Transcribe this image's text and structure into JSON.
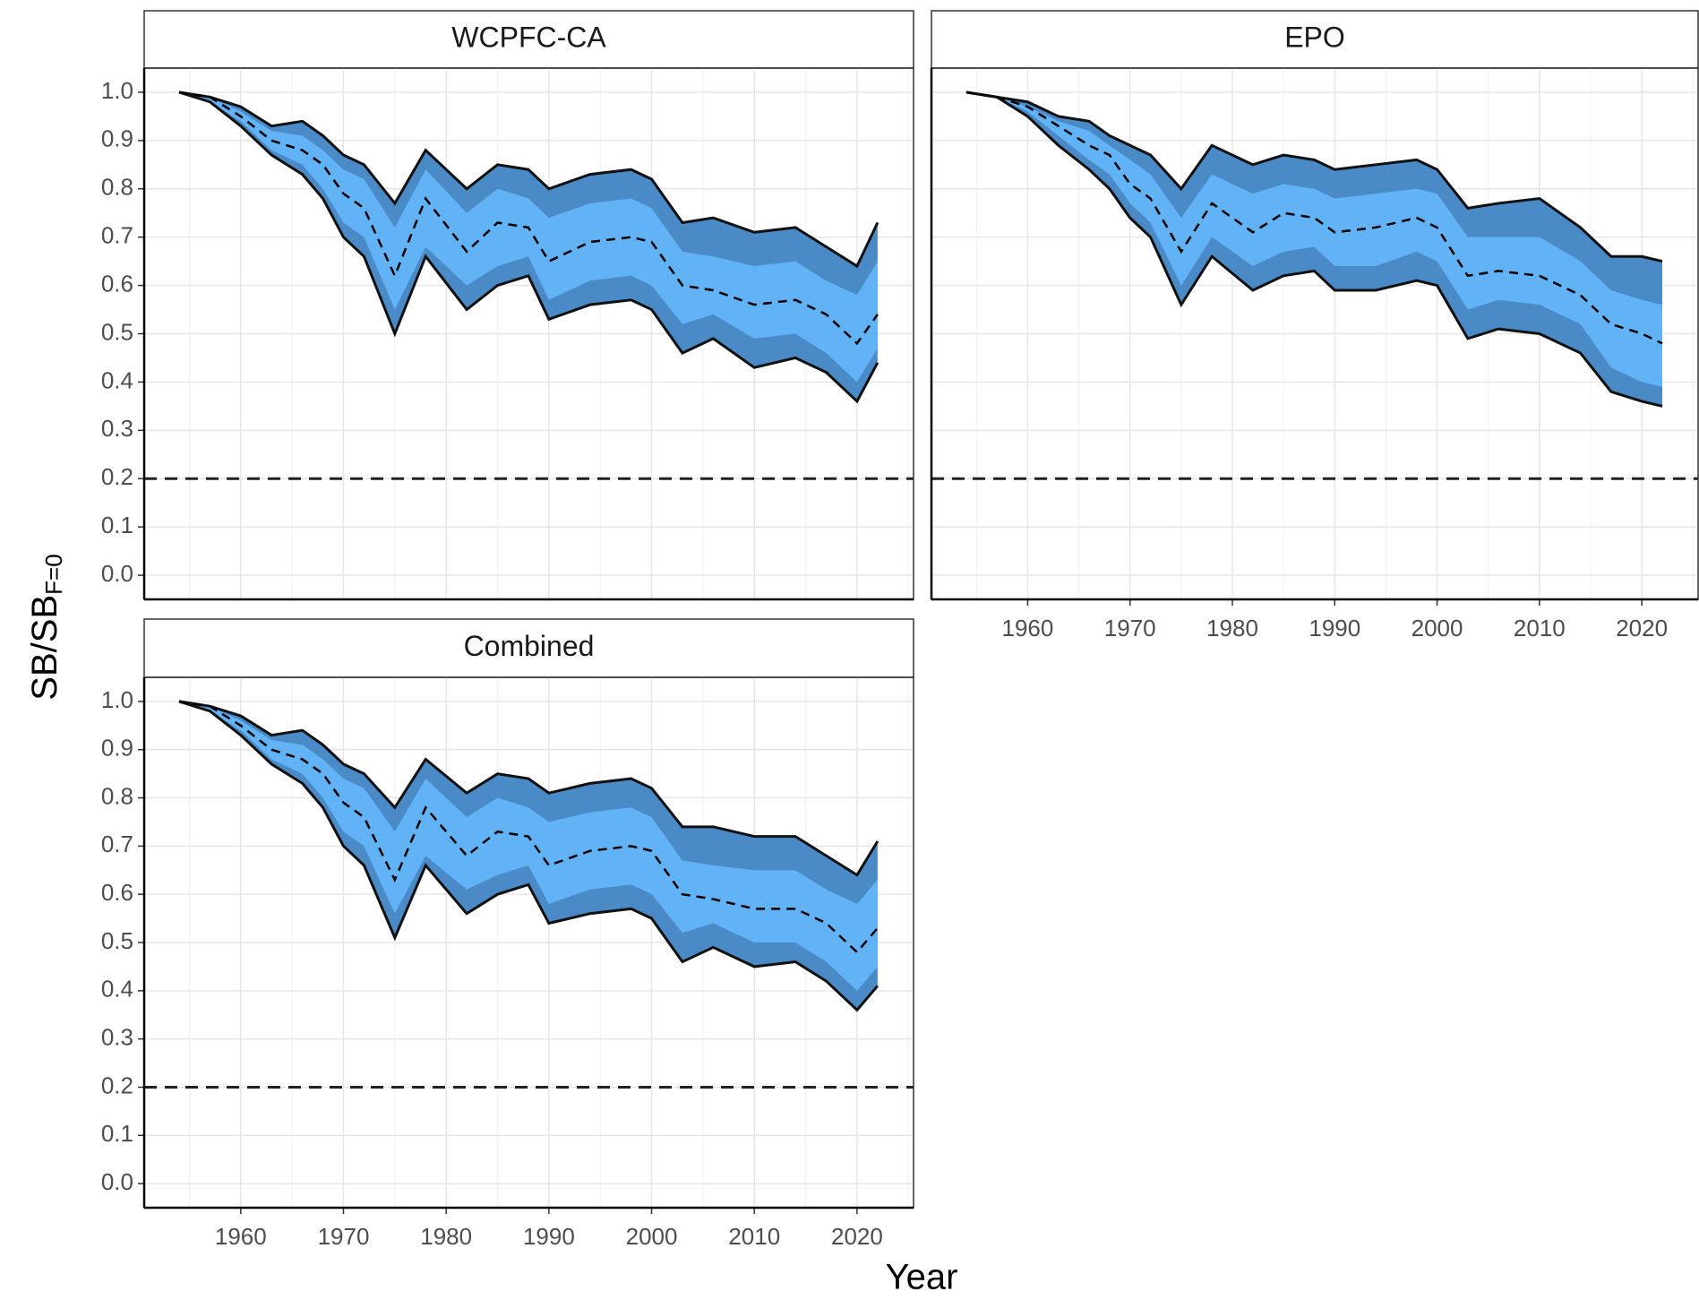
{
  "y_label": "SB/SB",
  "y_label_sub": "F=0",
  "x_label": "Year",
  "chart_data": [
    {
      "type": "band",
      "title": "WCPFC-CA",
      "show_xtick_labels": false,
      "show_ytick_labels": true,
      "x": [
        1954,
        1957,
        1960,
        1963,
        1966,
        1968,
        1970,
        1972,
        1975,
        1978,
        1982,
        1985,
        1988,
        1990,
        1994,
        1998,
        2000,
        2003,
        2006,
        2010,
        2014,
        2017,
        2020,
        2022
      ],
      "bands": [
        {
          "color": "#4a8ac6",
          "lower": [
            1,
            0.98,
            0.93,
            0.87,
            0.83,
            0.78,
            0.7,
            0.66,
            0.5,
            0.66,
            0.55,
            0.6,
            0.62,
            0.53,
            0.56,
            0.57,
            0.55,
            0.46,
            0.49,
            0.43,
            0.45,
            0.42,
            0.36,
            0.44
          ],
          "upper": [
            1,
            0.99,
            0.97,
            0.93,
            0.94,
            0.91,
            0.87,
            0.85,
            0.77,
            0.88,
            0.8,
            0.85,
            0.84,
            0.8,
            0.83,
            0.84,
            0.82,
            0.73,
            0.74,
            0.71,
            0.72,
            0.68,
            0.64,
            0.73
          ]
        },
        {
          "color": "#62b3f6",
          "lower": [
            1,
            0.98,
            0.94,
            0.88,
            0.85,
            0.8,
            0.73,
            0.7,
            0.55,
            0.68,
            0.6,
            0.64,
            0.66,
            0.57,
            0.61,
            0.62,
            0.6,
            0.52,
            0.54,
            0.49,
            0.5,
            0.46,
            0.4,
            0.47
          ],
          "upper": [
            1,
            0.99,
            0.96,
            0.92,
            0.91,
            0.88,
            0.84,
            0.82,
            0.72,
            0.84,
            0.75,
            0.8,
            0.78,
            0.74,
            0.77,
            0.78,
            0.76,
            0.67,
            0.66,
            0.64,
            0.65,
            0.61,
            0.58,
            0.65
          ]
        }
      ],
      "line": {
        "color": "#000000",
        "values": [
          1,
          0.99,
          0.95,
          0.9,
          0.88,
          0.85,
          0.79,
          0.76,
          0.62,
          0.78,
          0.67,
          0.73,
          0.72,
          0.65,
          0.69,
          0.7,
          0.69,
          0.6,
          0.59,
          0.56,
          0.57,
          0.54,
          0.48,
          0.54
        ]
      },
      "hline": 0.2,
      "xlim": [
        1950.6,
        2025.5
      ],
      "ylim": [
        -0.05,
        1.05
      ],
      "xticks": [
        1960,
        1970,
        1980,
        1990,
        2000,
        2010,
        2020
      ],
      "yticks": [
        {
          "value": 0,
          "label": "0.0"
        },
        0.1,
        0.2,
        0.3,
        0.4,
        0.5,
        0.6,
        0.7,
        0.8,
        0.9,
        {
          "value": 1,
          "label": "1.0"
        }
      ],
      "grid": true
    },
    {
      "type": "band",
      "title": "EPO",
      "show_xtick_labels": true,
      "show_ytick_labels": false,
      "x": [
        1954,
        1957,
        1960,
        1963,
        1966,
        1968,
        1970,
        1972,
        1975,
        1978,
        1982,
        1985,
        1988,
        1990,
        1994,
        1998,
        2000,
        2003,
        2006,
        2010,
        2014,
        2017,
        2020,
        2022
      ],
      "bands": [
        {
          "color": "#4a8ac6",
          "lower": [
            1,
            0.99,
            0.95,
            0.89,
            0.84,
            0.8,
            0.74,
            0.7,
            0.56,
            0.66,
            0.59,
            0.62,
            0.63,
            0.59,
            0.59,
            0.61,
            0.6,
            0.49,
            0.51,
            0.5,
            0.46,
            0.38,
            0.36,
            0.35
          ],
          "upper": [
            1,
            0.99,
            0.98,
            0.95,
            0.94,
            0.91,
            0.89,
            0.87,
            0.8,
            0.89,
            0.85,
            0.87,
            0.86,
            0.84,
            0.85,
            0.86,
            0.84,
            0.76,
            0.77,
            0.78,
            0.72,
            0.66,
            0.66,
            0.65
          ]
        },
        {
          "color": "#62b3f6",
          "lower": [
            1,
            0.99,
            0.96,
            0.91,
            0.86,
            0.83,
            0.77,
            0.73,
            0.6,
            0.7,
            0.64,
            0.67,
            0.68,
            0.64,
            0.64,
            0.67,
            0.65,
            0.55,
            0.57,
            0.56,
            0.52,
            0.43,
            0.4,
            0.39
          ],
          "upper": [
            1,
            0.99,
            0.97,
            0.94,
            0.92,
            0.89,
            0.86,
            0.83,
            0.74,
            0.83,
            0.79,
            0.81,
            0.8,
            0.78,
            0.79,
            0.8,
            0.79,
            0.7,
            0.7,
            0.7,
            0.65,
            0.59,
            0.57,
            0.56
          ]
        }
      ],
      "line": {
        "color": "#000000",
        "values": [
          1,
          0.99,
          0.97,
          0.93,
          0.89,
          0.87,
          0.81,
          0.78,
          0.67,
          0.77,
          0.71,
          0.75,
          0.74,
          0.71,
          0.72,
          0.74,
          0.72,
          0.62,
          0.63,
          0.62,
          0.58,
          0.52,
          0.5,
          0.48
        ]
      },
      "hline": 0.2,
      "xlim": [
        1950.6,
        2025.5
      ],
      "ylim": [
        -0.05,
        1.05
      ],
      "xticks": [
        1960,
        1970,
        1980,
        1990,
        2000,
        2010,
        2020
      ],
      "yticks": [
        {
          "value": 0,
          "label": "0.0"
        },
        0.1,
        0.2,
        0.3,
        0.4,
        0.5,
        0.6,
        0.7,
        0.8,
        0.9,
        {
          "value": 1,
          "label": "1.0"
        }
      ],
      "grid": true
    },
    {
      "type": "band",
      "title": "Combined",
      "show_xtick_labels": true,
      "show_ytick_labels": true,
      "x": [
        1954,
        1957,
        1960,
        1963,
        1966,
        1968,
        1970,
        1972,
        1975,
        1978,
        1982,
        1985,
        1988,
        1990,
        1994,
        1998,
        2000,
        2003,
        2006,
        2010,
        2014,
        2017,
        2020,
        2022
      ],
      "bands": [
        {
          "color": "#4a8ac6",
          "lower": [
            1,
            0.98,
            0.93,
            0.87,
            0.83,
            0.78,
            0.7,
            0.66,
            0.51,
            0.66,
            0.56,
            0.6,
            0.62,
            0.54,
            0.56,
            0.57,
            0.55,
            0.46,
            0.49,
            0.45,
            0.46,
            0.42,
            0.36,
            0.41
          ],
          "upper": [
            1,
            0.99,
            0.97,
            0.93,
            0.94,
            0.91,
            0.87,
            0.85,
            0.78,
            0.88,
            0.81,
            0.85,
            0.84,
            0.81,
            0.83,
            0.84,
            0.82,
            0.74,
            0.74,
            0.72,
            0.72,
            0.68,
            0.64,
            0.71
          ]
        },
        {
          "color": "#62b3f6",
          "lower": [
            1,
            0.98,
            0.94,
            0.88,
            0.85,
            0.8,
            0.73,
            0.7,
            0.56,
            0.68,
            0.61,
            0.64,
            0.66,
            0.58,
            0.61,
            0.62,
            0.6,
            0.52,
            0.54,
            0.5,
            0.5,
            0.46,
            0.4,
            0.45
          ],
          "upper": [
            1,
            0.99,
            0.96,
            0.92,
            0.91,
            0.88,
            0.84,
            0.82,
            0.73,
            0.84,
            0.76,
            0.8,
            0.78,
            0.75,
            0.77,
            0.78,
            0.76,
            0.67,
            0.66,
            0.65,
            0.65,
            0.61,
            0.58,
            0.63
          ]
        }
      ],
      "line": {
        "color": "#000000",
        "values": [
          1,
          0.99,
          0.95,
          0.9,
          0.88,
          0.85,
          0.79,
          0.76,
          0.63,
          0.78,
          0.68,
          0.73,
          0.72,
          0.66,
          0.69,
          0.7,
          0.69,
          0.6,
          0.59,
          0.57,
          0.57,
          0.54,
          0.48,
          0.53
        ]
      },
      "hline": 0.2,
      "xlim": [
        1950.6,
        2025.5
      ],
      "ylim": [
        -0.05,
        1.05
      ],
      "xticks": [
        1960,
        1970,
        1980,
        1990,
        2000,
        2010,
        2020
      ],
      "yticks": [
        {
          "value": 0,
          "label": "0.0"
        },
        0.1,
        0.2,
        0.3,
        0.4,
        0.5,
        0.6,
        0.7,
        0.8,
        0.9,
        {
          "value": 1,
          "label": "1.0"
        }
      ],
      "grid": true
    }
  ]
}
